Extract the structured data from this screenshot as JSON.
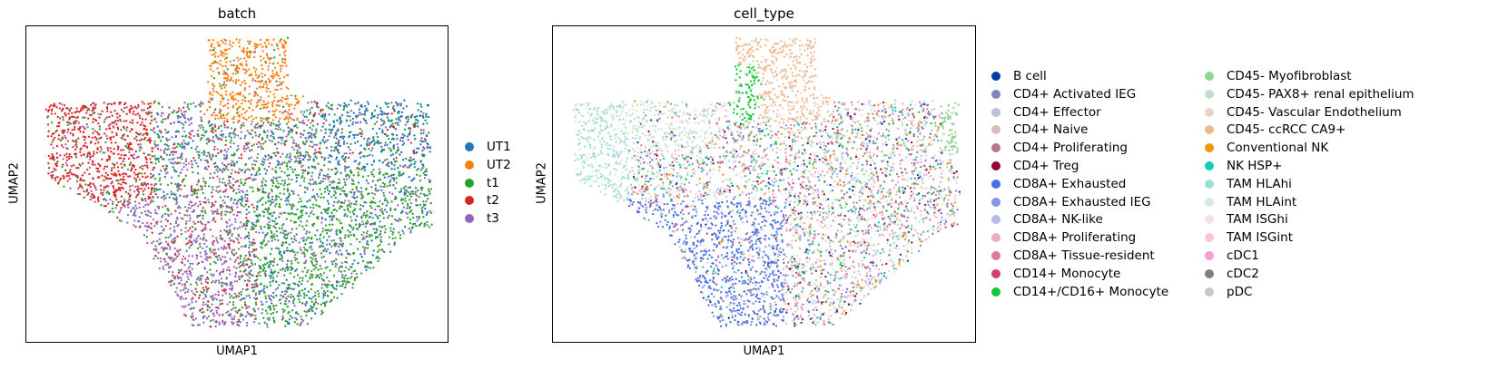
{
  "chart_data": [
    {
      "type": "scatter",
      "title": "batch",
      "xlabel": "UMAP1",
      "ylabel": "UMAP2",
      "grid": false,
      "legend_placement": "right",
      "series": [
        {
          "name": "UT1",
          "color": "#1f77b4"
        },
        {
          "name": "UT2",
          "color": "#ff7f0e"
        },
        {
          "name": "t1",
          "color": "#2ca02c"
        },
        {
          "name": "t2",
          "color": "#d62728"
        },
        {
          "name": "t3",
          "color": "#9467bd"
        }
      ]
    },
    {
      "type": "scatter",
      "title": "cell_type",
      "xlabel": "UMAP1",
      "ylabel": "UMAP2",
      "grid": false,
      "legend_placement": "right",
      "series": [
        {
          "name": "B cell",
          "color": "#023fa5"
        },
        {
          "name": "CD4+ Activated IEG",
          "color": "#7d87b9"
        },
        {
          "name": "CD4+ Effector",
          "color": "#bec1d4"
        },
        {
          "name": "CD4+ Naive",
          "color": "#d6bcc0"
        },
        {
          "name": "CD4+ Proliferating",
          "color": "#bb7784"
        },
        {
          "name": "CD4+ Treg",
          "color": "#8e063b"
        },
        {
          "name": "CD8A+ Exhausted",
          "color": "#4a6fe3"
        },
        {
          "name": "CD8A+ Exhausted IEG",
          "color": "#8595e1"
        },
        {
          "name": "CD8A+ NK-like",
          "color": "#b5bbe3"
        },
        {
          "name": "CD8A+ Proliferating",
          "color": "#e6afb9"
        },
        {
          "name": "CD8A+ Tissue-resident",
          "color": "#e07b91"
        },
        {
          "name": "CD14+ Monocyte",
          "color": "#d33f6a"
        },
        {
          "name": "CD14+/CD16+ Monocyte",
          "color": "#11c638"
        },
        {
          "name": "CD45- Myofibroblast",
          "color": "#8dd593"
        },
        {
          "name": "CD45- PAX8+ renal epithelium",
          "color": "#c6dec7"
        },
        {
          "name": "CD45- Vascular Endothelium",
          "color": "#ead3c6"
        },
        {
          "name": "CD45- ccRCC CA9+",
          "color": "#f0b98d"
        },
        {
          "name": "Conventional NK",
          "color": "#ef9708"
        },
        {
          "name": "NK HSP+",
          "color": "#0fcfc0"
        },
        {
          "name": "TAM HLAhi",
          "color": "#9cded6"
        },
        {
          "name": "TAM HLAint",
          "color": "#d5eae7"
        },
        {
          "name": "TAM ISGhi",
          "color": "#f3e1eb"
        },
        {
          "name": "TAM ISGint",
          "color": "#f6c4e1"
        },
        {
          "name": "cDC1",
          "color": "#f79cd4"
        },
        {
          "name": "cDC2",
          "color": "#7f7f7f"
        },
        {
          "name": "pDC",
          "color": "#c7c7c7"
        }
      ]
    }
  ]
}
